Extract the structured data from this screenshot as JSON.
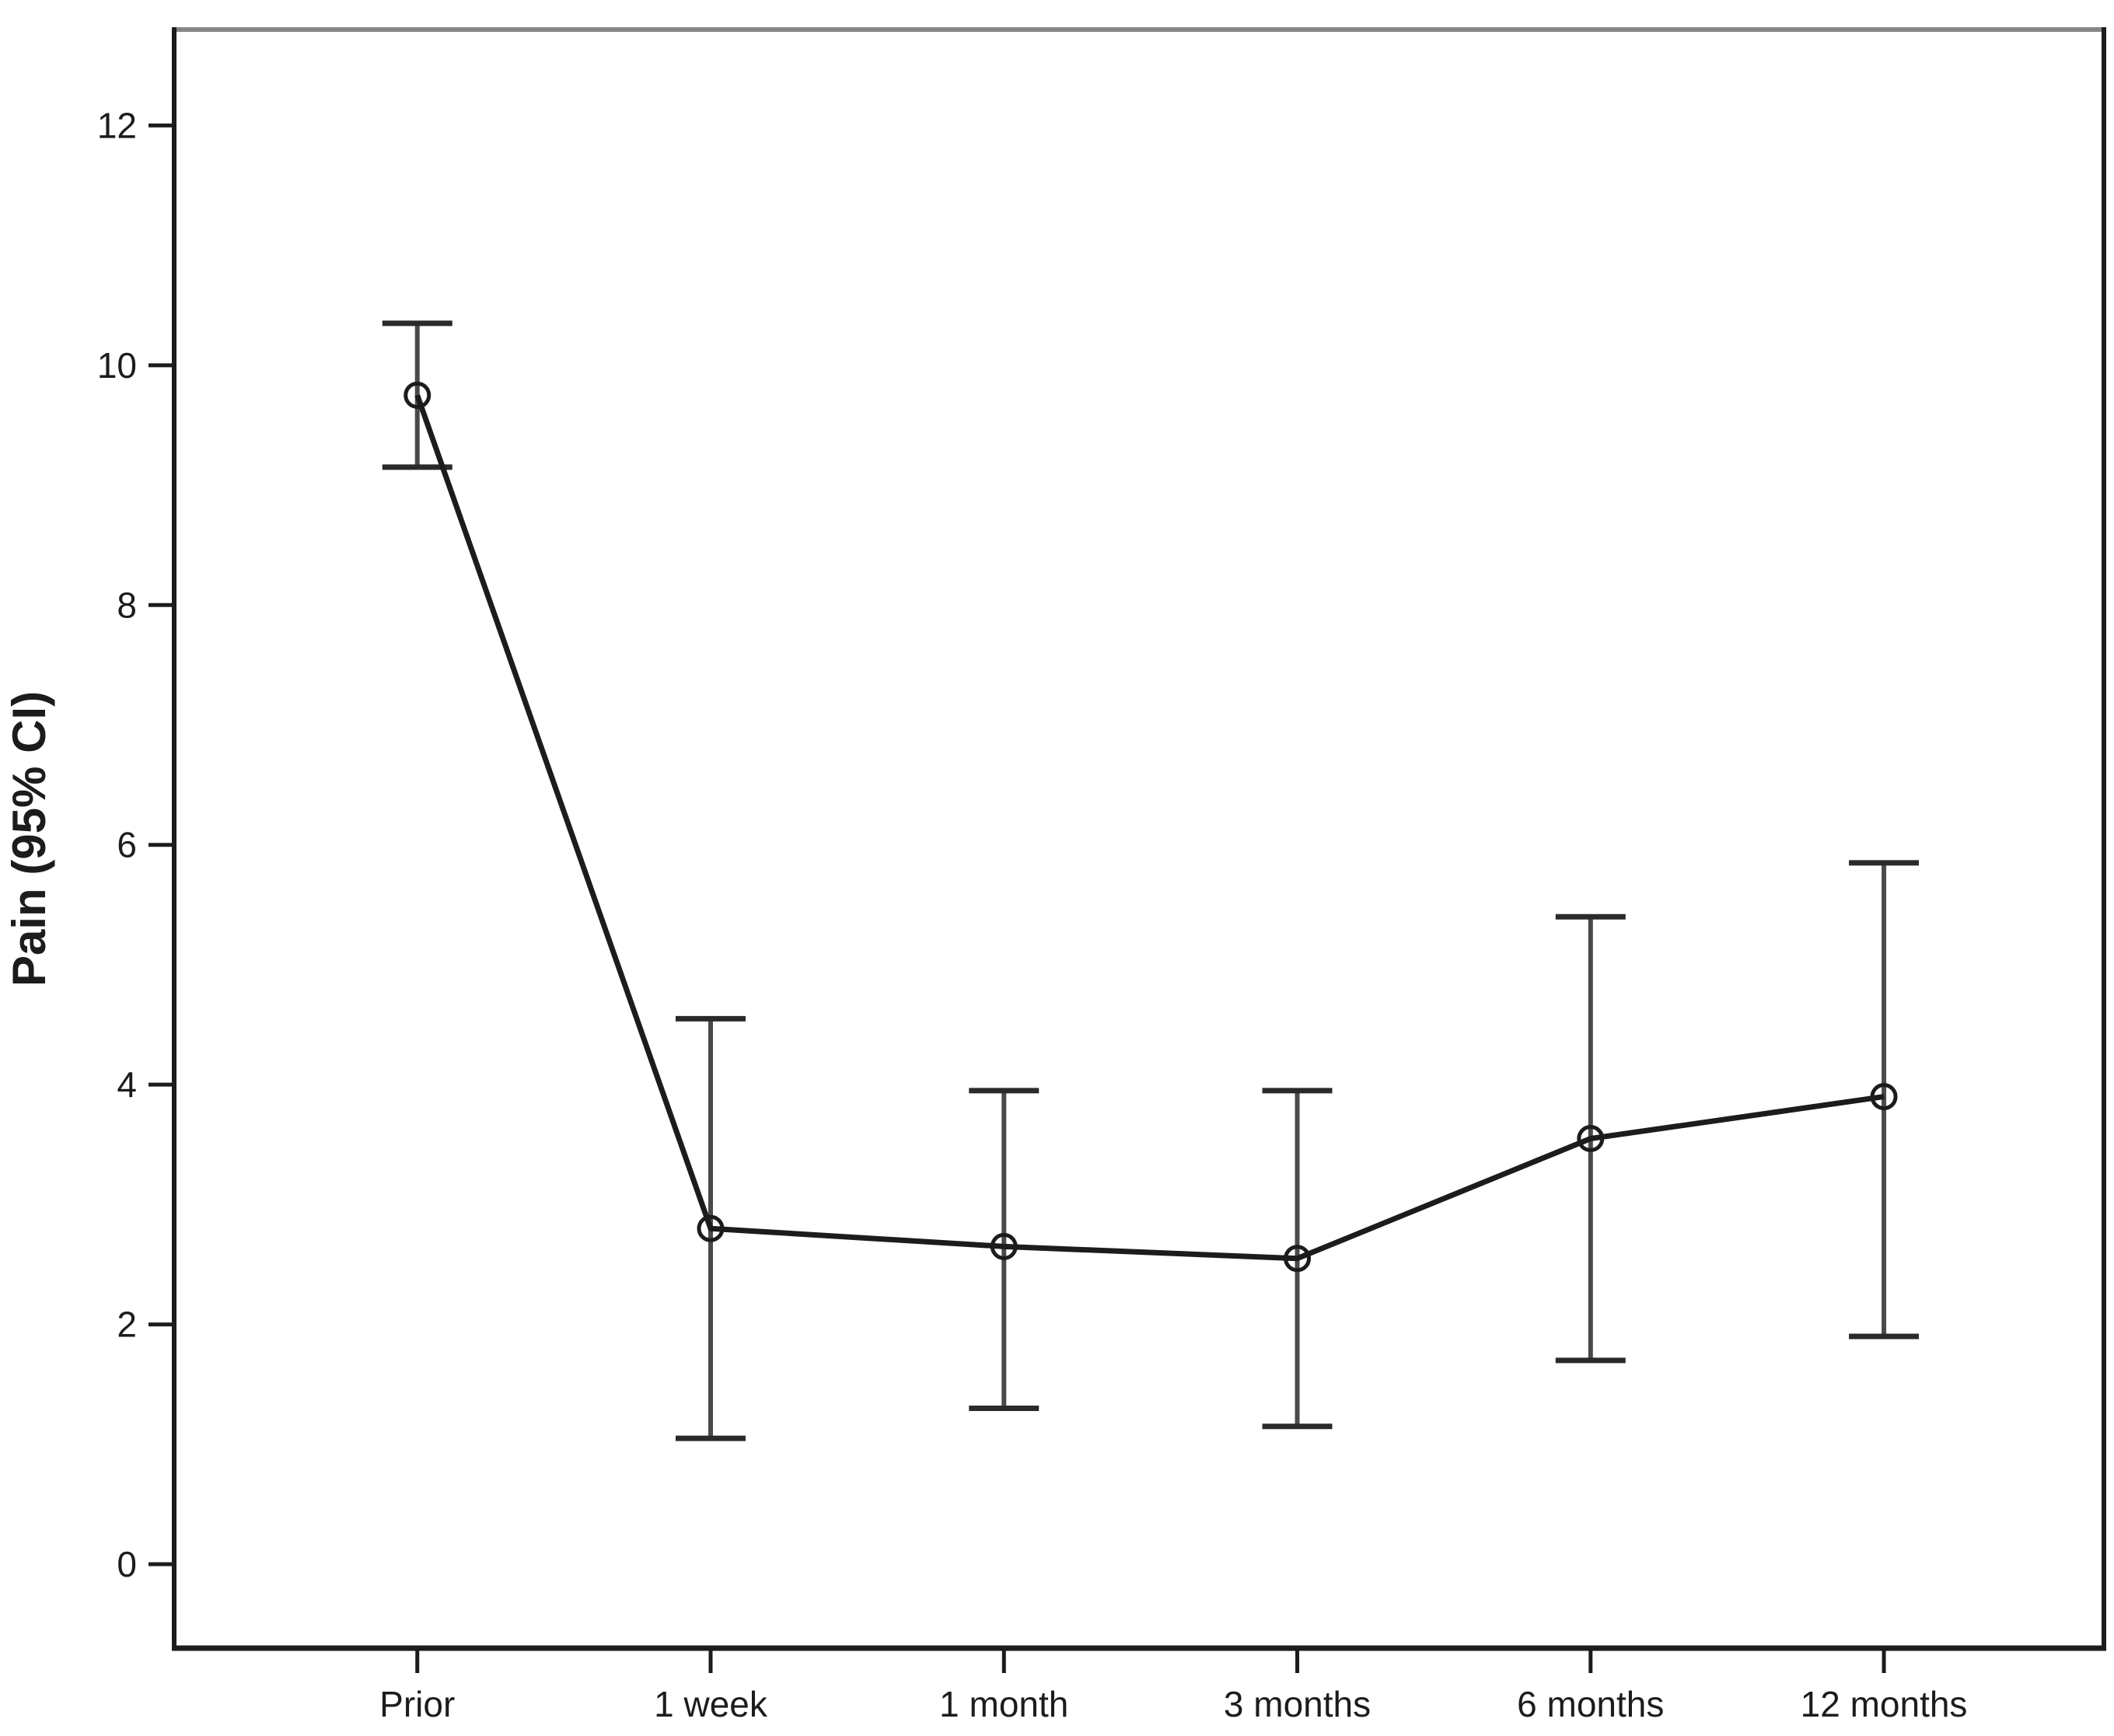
{
  "figure": {
    "background": "#ffffff",
    "description": "Line chart of mean pain scores with 95% confidence interval error bars across follow-up time points"
  },
  "chart_data": {
    "type": "line",
    "ylabel": "Pain (95% CI)",
    "categories": [
      "Prior",
      "1 week",
      "1 month",
      "3 months",
      "6 months",
      "12 months"
    ],
    "series": [
      {
        "name": "Mean pain (95% CI)",
        "values": [
          9.75,
          2.8,
          2.65,
          2.55,
          3.55,
          3.9
        ],
        "ci_lower": [
          9.15,
          1.05,
          1.3,
          1.15,
          1.7,
          1.9
        ],
        "ci_upper": [
          10.35,
          4.55,
          3.95,
          3.95,
          5.4,
          5.85
        ]
      }
    ],
    "yticks": [
      0,
      2,
      4,
      6,
      8,
      10,
      12
    ],
    "ylim": [
      -0.7,
      12.8
    ],
    "grid": false,
    "legend": false,
    "marker": "open-circle",
    "error_bars": "95% CI",
    "line_color": "#1c1c1c",
    "error_bar_color": "#4a4a4a",
    "error_bar_cap_color": "#2a2a2a",
    "frame_top_color": "#868686",
    "text_color": "#1c1c1c"
  }
}
